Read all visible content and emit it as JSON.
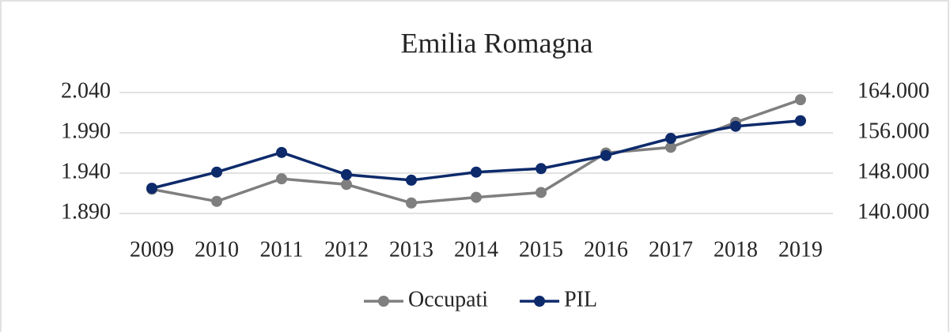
{
  "chart_data": {
    "type": "line",
    "title": "Emilia Romagna",
    "categories": [
      "2009",
      "2010",
      "2011",
      "2012",
      "2013",
      "2014",
      "2015",
      "2016",
      "2017",
      "2018",
      "2019"
    ],
    "series": [
      {
        "name": "Occupati",
        "color": "#7f7f7f",
        "values": [
          1920,
          1905,
          1933,
          1926,
          1903,
          1910,
          1916,
          1965,
          1972,
          2003,
          2031
        ]
      },
      {
        "name": "PIL",
        "color": "#0d2a6b",
        "axis": "y2",
        "values": [
          145000,
          148200,
          152100,
          147700,
          146600,
          148200,
          148900,
          151500,
          154900,
          157300,
          158400
        ]
      }
    ],
    "ylim": [
      1890,
      2040
    ],
    "yticks": [
      {
        "value": 1890,
        "label": "1.890"
      },
      {
        "value": 1940,
        "label": "1.940"
      },
      {
        "value": 1990,
        "label": "1.990"
      },
      {
        "value": 2040,
        "label": "2.040"
      }
    ],
    "y2lim": [
      140000,
      164000
    ],
    "y2ticks": [
      {
        "value": 140000,
        "label": "140.000"
      },
      {
        "value": 148000,
        "label": "148.000"
      },
      {
        "value": 156000,
        "label": "156.000"
      },
      {
        "value": 164000,
        "label": "164.000"
      }
    ],
    "grid": true,
    "legend": "bottom"
  }
}
